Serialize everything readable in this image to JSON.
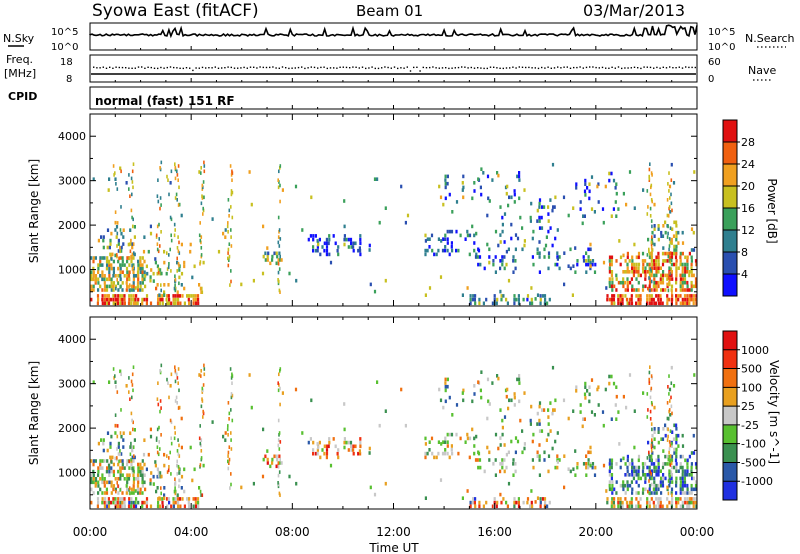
{
  "header": {
    "station": "Syowa East (fitACF)",
    "beam": "Beam 01",
    "date": "03/Mar/2013"
  },
  "status_panels": {
    "nsky_label": "N.Sky",
    "nsky_ticks": [
      "10^5",
      "10^0"
    ],
    "nsearch_label": "N.Search",
    "nsearch_ticks": [
      "10^5",
      "10^0"
    ],
    "freq_label": "Freq.",
    "freq_unit": "[MHz]",
    "freq_ticks": [
      "18",
      "8"
    ],
    "nave_label": "Nave",
    "nave_ticks": [
      "60",
      "0"
    ],
    "cpid_label": "CPID",
    "cpid_value": "normal (fast) 151 RF"
  },
  "chart_data": [
    {
      "type": "heatmap",
      "parameter": "Power",
      "ylabel": "Slant Range [km]",
      "xlabel": "",
      "x_range_hours": [
        0,
        24
      ],
      "ylim": [
        180,
        4500
      ],
      "y_ticks": [
        "1000",
        "2000",
        "3000",
        "4000"
      ],
      "colorbar": {
        "label": "Power [dB]",
        "tick_labels": [
          "4",
          "8",
          "12",
          "16",
          "20",
          "24",
          "28"
        ],
        "colors": [
          "#1010ff",
          "#2a4fb0",
          "#2f7f8f",
          "#3aa05a",
          "#c8c020",
          "#f0a020",
          "#f06010",
          "#e01010"
        ]
      }
    },
    {
      "type": "heatmap",
      "parameter": "Velocity",
      "ylabel": "Slant Range [km]",
      "xlabel": "Time UT",
      "x_ticks": [
        "00:00",
        "04:00",
        "08:00",
        "12:00",
        "16:00",
        "20:00",
        "00:00"
      ],
      "x_range_hours": [
        0,
        24
      ],
      "ylim": [
        180,
        4500
      ],
      "y_ticks": [
        "1000",
        "2000",
        "3000",
        "4000"
      ],
      "colorbar": {
        "label": "Velocity [m s^-1]",
        "tick_labels": [
          "1000",
          "500",
          "100",
          "25",
          "-25",
          "-100",
          "-500",
          "-1000"
        ],
        "colors": [
          "#2030e0",
          "#2a58a8",
          "#3a9050",
          "#58c030",
          "#c8c8c8",
          "#e8a020",
          "#f07010",
          "#f03010",
          "#e01010"
        ]
      }
    }
  ]
}
